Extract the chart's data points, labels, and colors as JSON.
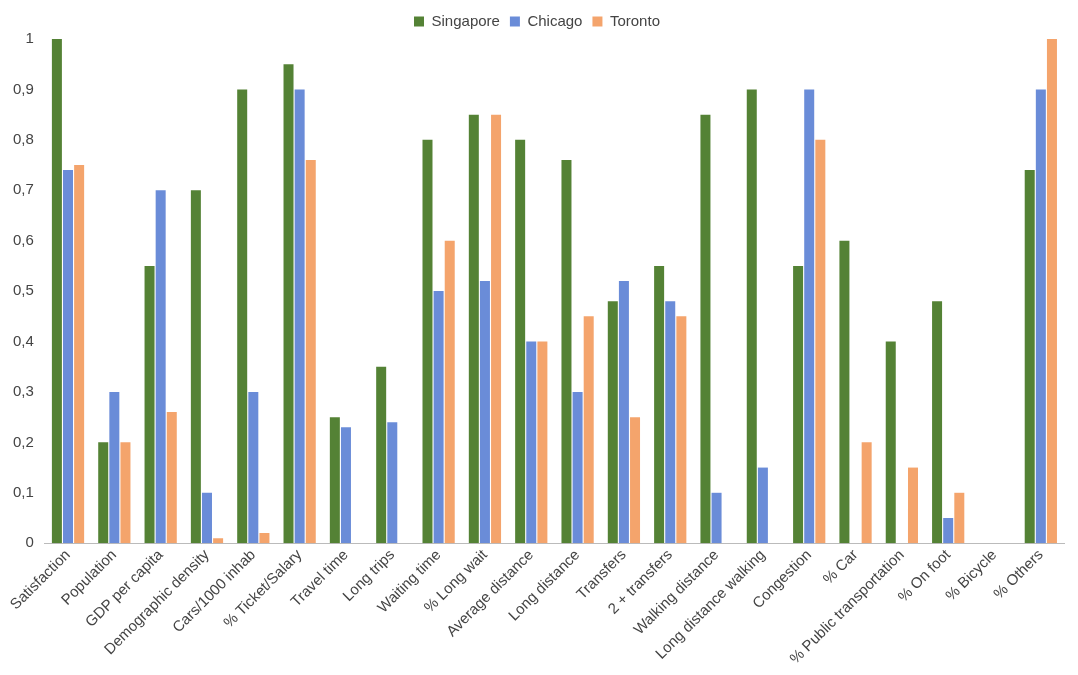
{
  "chart_data": {
    "type": "bar",
    "categories": [
      "Satisfaction",
      "Population",
      "GDP per capita",
      "Demographic density",
      "Cars/1000 inhab",
      "% Ticket/Salary",
      "Travel time",
      "Long trips",
      "Waiting time",
      "% Long wait",
      "Average distance",
      "Long distance",
      "Transfers",
      "2 + transfers",
      "Walking distance",
      "Long distance walking",
      "Congestion",
      "% Car",
      "% Public transportation",
      "% On foot",
      "% Bicycle",
      "% Others"
    ],
    "series": [
      {
        "name": "Singapore",
        "color": "#548235",
        "values": [
          1,
          0.2,
          0.55,
          0.7,
          0.9,
          0.95,
          0.25,
          0.35,
          0.8,
          0.85,
          0.8,
          0.76,
          0.48,
          0.55,
          0.85,
          0.9,
          0.55,
          0.6,
          0.4,
          0.48,
          0,
          0.74
        ]
      },
      {
        "name": "Chicago",
        "color": "#6a8cd8",
        "values": [
          0.74,
          0.3,
          0.7,
          0.1,
          0.3,
          0.9,
          0.23,
          0.24,
          0.5,
          0.52,
          0.4,
          0.3,
          0.52,
          0.48,
          0.1,
          0.15,
          0.9,
          0,
          0,
          0.05,
          0,
          0.9
        ]
      },
      {
        "name": "Toronto",
        "color": "#f4a46c",
        "values": [
          0.75,
          0.2,
          0.26,
          0.01,
          0.02,
          0.76,
          0,
          0,
          0.6,
          0.85,
          0.4,
          0.45,
          0.25,
          0.45,
          0,
          0,
          0.8,
          0.2,
          0.15,
          0.1,
          0,
          1
        ]
      }
    ],
    "ylim": [
      0,
      1
    ],
    "yticks": [
      0,
      {
        "value": 0.1,
        "label": "0,1"
      },
      {
        "value": 0.2,
        "label": "0,2"
      },
      {
        "value": 0.3,
        "label": "0,3"
      },
      {
        "value": 0.4,
        "label": "0,4"
      },
      {
        "value": 0.5,
        "label": "0,5"
      },
      {
        "value": 0.6,
        "label": "0,6"
      },
      {
        "value": 0.7,
        "label": "0,7"
      },
      {
        "value": 0.8,
        "label": "0,8"
      },
      {
        "value": 0.9,
        "label": "0,9"
      },
      1
    ],
    "grid": false,
    "legend": "top"
  }
}
